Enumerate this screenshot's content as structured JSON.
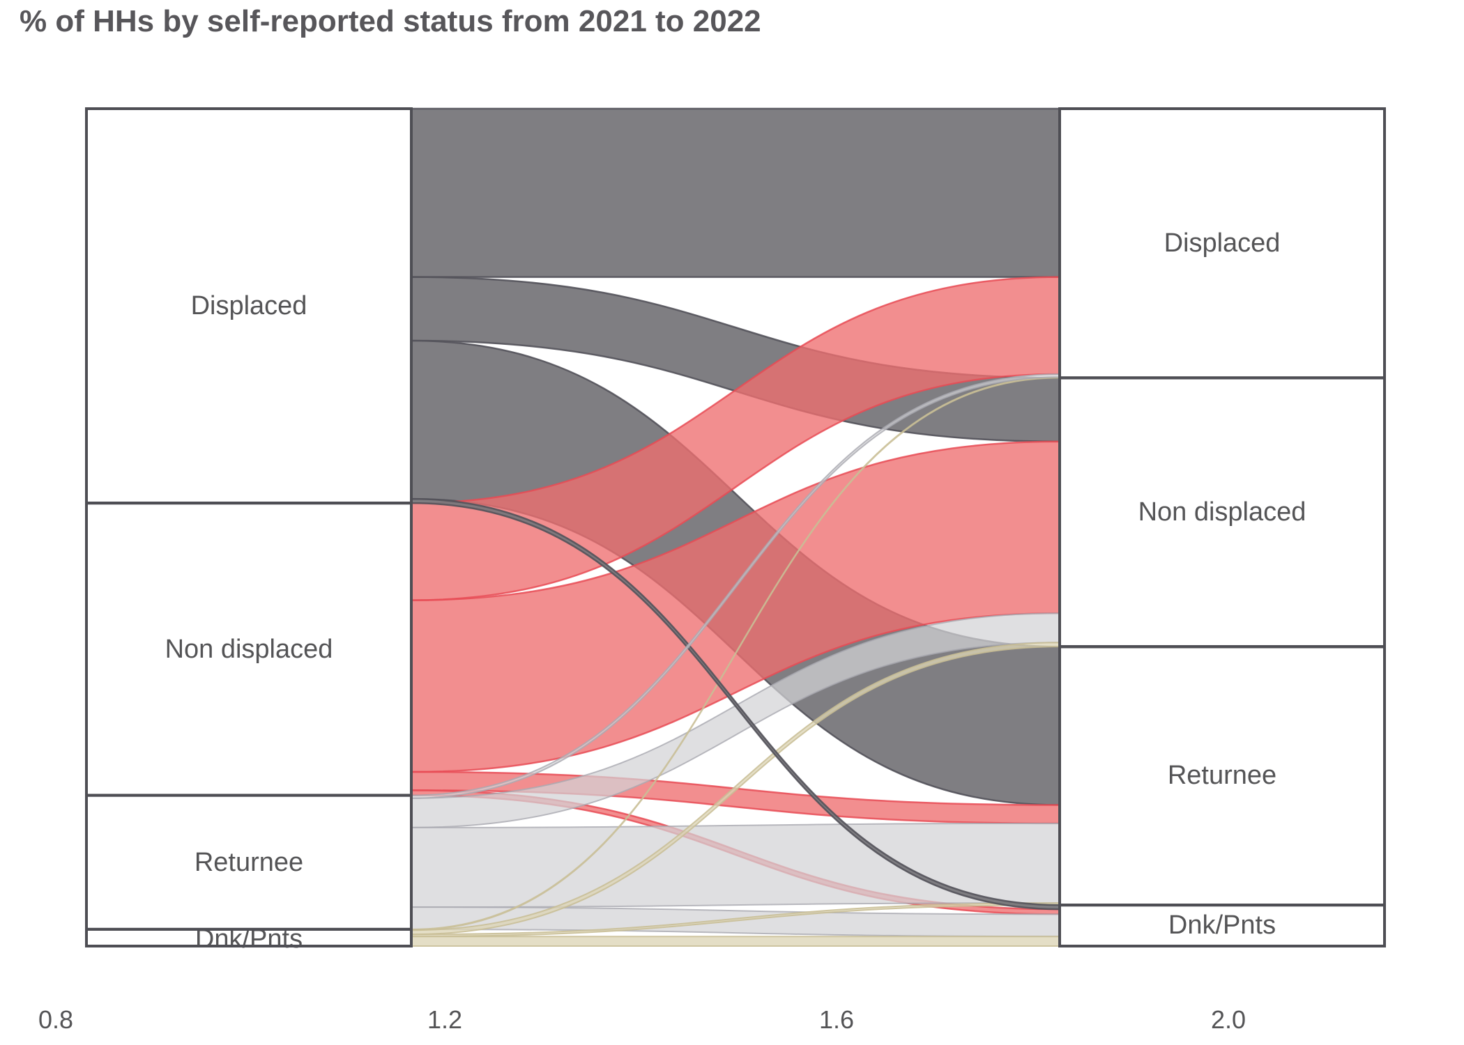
{
  "header": {
    "title": "% of HHs by self-reported status from 2021 to 2022"
  },
  "chart_data": {
    "type": "alluvial",
    "title": "% of HHs by self-reported status from 2021 to 2022",
    "years": [
      "2021",
      "2022"
    ],
    "categories": [
      "Displaced",
      "Non displaced",
      "Returnee",
      "Dnk/Pnts"
    ],
    "x_axis_ticks": [
      "0.8",
      "1.2",
      "1.6",
      "2.0"
    ],
    "legend": "none",
    "node_pct_2021": [
      47.1,
      34.9,
      16.0,
      2.0
    ],
    "node_pct_2022": [
      32.2,
      32.1,
      30.9,
      4.9
    ],
    "flows_pct": [
      {
        "from": "Displaced",
        "to": "Displaced",
        "pct": 20.1
      },
      {
        "from": "Displaced",
        "to": "Non displaced",
        "pct": 7.6
      },
      {
        "from": "Displaced",
        "to": "Returnee",
        "pct": 18.9
      },
      {
        "from": "Displaced",
        "to": "Dnk/Pnts",
        "pct": 0.5
      },
      {
        "from": "Non displaced",
        "to": "Displaced",
        "pct": 11.6
      },
      {
        "from": "Non displaced",
        "to": "Non displaced",
        "pct": 20.5
      },
      {
        "from": "Non displaced",
        "to": "Returnee",
        "pct": 2.2
      },
      {
        "from": "Non displaced",
        "to": "Dnk/Pnts",
        "pct": 0.6
      },
      {
        "from": "Returnee",
        "to": "Displaced",
        "pct": 0.35
      },
      {
        "from": "Returnee",
        "to": "Non displaced",
        "pct": 3.5
      },
      {
        "from": "Returnee",
        "to": "Returnee",
        "pct": 9.5
      },
      {
        "from": "Returnee",
        "to": "Dnk/Pnts",
        "pct": 2.65
      },
      {
        "from": "Dnk/Pnts",
        "to": "Displaced",
        "pct": 0.1
      },
      {
        "from": "Dnk/Pnts",
        "to": "Non displaced",
        "pct": 0.5
      },
      {
        "from": "Dnk/Pnts",
        "to": "Returnee",
        "pct": 0.25
      },
      {
        "from": "Dnk/Pnts",
        "to": "Dnk/Pnts",
        "pct": 1.15
      }
    ],
    "colors": {
      "displaced": "#78777b",
      "non_displaced": "#ee6e70",
      "returnee": "#d3d3d6",
      "dnk_pnts": "#ddd5b6",
      "stroke_displaced": "#53525a",
      "stroke_non_displaced": "#e84b55",
      "stroke_returnee": "#a9a9b0",
      "stroke_dnk_pnts": "#c8bd94",
      "box_border": "#4e4e54",
      "text": "#545456"
    }
  }
}
